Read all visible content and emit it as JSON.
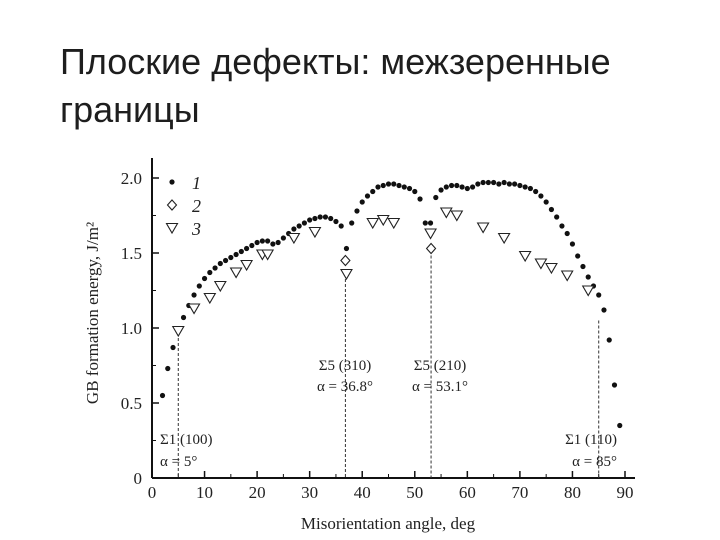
{
  "slide": {
    "title": "Плоские дефекты: межзеренные границы"
  },
  "chart_data": {
    "type": "scatter",
    "xlabel": "Misorientation angle, deg",
    "ylabel": "GB formation energy, J/m²",
    "xlim": [
      0,
      90
    ],
    "ylim": [
      0,
      2.0
    ],
    "xticks": [
      0,
      10,
      20,
      30,
      40,
      50,
      60,
      70,
      80,
      90
    ],
    "yticks": [
      0,
      0.5,
      1.0,
      1.5,
      2.0
    ],
    "ytick_labels": [
      "0",
      "0.5",
      "1.0",
      "1.5",
      "2.0"
    ],
    "grid": false,
    "legend_position": "top-left",
    "series": [
      {
        "name": "1",
        "marker": "filled-dot",
        "x": [
          2,
          3,
          4,
          5,
          6,
          7,
          8,
          9,
          10,
          11,
          12,
          13,
          14,
          15,
          16,
          17,
          18,
          19,
          20,
          21,
          22,
          23,
          24,
          25,
          26,
          27,
          28,
          29,
          30,
          31,
          32,
          33,
          34,
          35,
          36,
          37,
          38,
          39,
          40,
          41,
          42,
          43,
          44,
          45,
          46,
          47,
          48,
          49,
          50,
          51,
          52,
          53,
          54,
          55,
          56,
          57,
          58,
          59,
          60,
          61,
          62,
          63,
          64,
          65,
          66,
          67,
          68,
          69,
          70,
          71,
          72,
          73,
          74,
          75,
          76,
          77,
          78,
          79,
          80,
          81,
          82,
          83,
          84,
          85,
          86,
          87,
          88,
          89
        ],
        "y": [
          0.55,
          0.73,
          0.87,
          0.98,
          1.07,
          1.15,
          1.22,
          1.28,
          1.33,
          1.37,
          1.4,
          1.43,
          1.45,
          1.47,
          1.49,
          1.51,
          1.53,
          1.55,
          1.57,
          1.58,
          1.58,
          1.56,
          1.57,
          1.6,
          1.63,
          1.66,
          1.68,
          1.7,
          1.72,
          1.73,
          1.74,
          1.74,
          1.73,
          1.71,
          1.68,
          1.53,
          1.7,
          1.78,
          1.84,
          1.88,
          1.91,
          1.94,
          1.95,
          1.96,
          1.96,
          1.95,
          1.94,
          1.93,
          1.91,
          1.86,
          1.7,
          1.7,
          1.87,
          1.92,
          1.94,
          1.95,
          1.95,
          1.94,
          1.93,
          1.94,
          1.96,
          1.97,
          1.97,
          1.97,
          1.96,
          1.97,
          1.96,
          1.96,
          1.95,
          1.94,
          1.93,
          1.91,
          1.88,
          1.84,
          1.79,
          1.74,
          1.68,
          1.63,
          1.56,
          1.48,
          1.41,
          1.34,
          1.28,
          1.22,
          1.12,
          0.92,
          0.62,
          0.35
        ]
      },
      {
        "name": "2",
        "marker": "open-diamond",
        "x": [
          36.8,
          53.1
        ],
        "y": [
          1.45,
          1.53
        ]
      },
      {
        "name": "3",
        "marker": "open-triangle-down",
        "x": [
          5,
          8,
          11,
          13,
          16,
          18,
          21,
          22,
          27,
          31,
          37,
          42,
          44,
          46,
          53,
          56,
          58,
          63,
          67,
          71,
          74,
          76,
          79,
          83
        ],
        "y": [
          0.98,
          1.13,
          1.2,
          1.28,
          1.37,
          1.42,
          1.49,
          1.49,
          1.6,
          1.64,
          1.36,
          1.7,
          1.72,
          1.7,
          1.63,
          1.77,
          1.75,
          1.67,
          1.6,
          1.48,
          1.43,
          1.4,
          1.35,
          1.25
        ]
      }
    ],
    "annotations": [
      {
        "x": 5,
        "line1": "Σ1 (100)",
        "line2": "α = 5°"
      },
      {
        "x": 36.8,
        "line1": "Σ5 (310)",
        "line2": "α = 36.8°"
      },
      {
        "x": 53.1,
        "line1": "Σ5 (210)",
        "line2": "α = 53.1°"
      },
      {
        "x": 85,
        "line1": "Σ1 (110)",
        "line2": "α = 85°"
      }
    ]
  }
}
